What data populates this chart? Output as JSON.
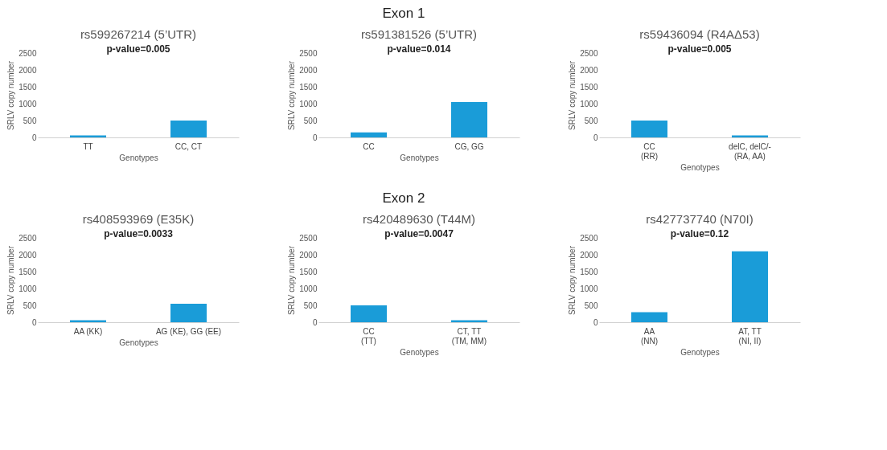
{
  "chart_data": [
    {
      "type": "bar",
      "title": "rs599267214 (5’UTR)",
      "xlabel": "Genotypes",
      "ylabel": "SRLV copy number",
      "categories": [
        "TT",
        "CC, CT"
      ],
      "values": [
        60,
        500
      ],
      "color": "#1a9cd8",
      "ylim": [
        0,
        2500
      ],
      "yticks": [
        0,
        500,
        1000,
        1500,
        2000,
        2500
      ],
      "grid": false,
      "annotations": [
        "Exon 1",
        "p-value=0.005"
      ]
    },
    {
      "type": "bar",
      "title": "rs591381526 (5’UTR)",
      "xlabel": "Genotypes",
      "ylabel": "SRLV copy number",
      "categories": [
        "CC",
        "CG, GG"
      ],
      "values": [
        150,
        1050
      ],
      "color": "#1a9cd8",
      "ylim": [
        0,
        2500
      ],
      "yticks": [
        0,
        500,
        1000,
        1500,
        2000,
        2500
      ],
      "grid": false,
      "annotations": [
        "p-value=0.014"
      ]
    },
    {
      "type": "bar",
      "title": "rs59436094 (R4AΔ53)",
      "xlabel": "Genotypes",
      "ylabel": "SRLV copy number",
      "categories": [
        "CC\n(RR)",
        "delC, delC/-\n(RA, AA)"
      ],
      "values": [
        500,
        60
      ],
      "color": "#1a9cd8",
      "ylim": [
        0,
        2500
      ],
      "yticks": [
        0,
        500,
        1000,
        1500,
        2000,
        2500
      ],
      "grid": false,
      "annotations": [
        "p-value=0.005"
      ]
    },
    {
      "type": "bar",
      "title": "rs408593969 (E35K)",
      "xlabel": "Genotypes",
      "ylabel": "SRLV copy number",
      "categories": [
        "AA (KK)",
        "AG (KE), GG (EE)"
      ],
      "values": [
        60,
        550
      ],
      "color": "#1a9cd8",
      "ylim": [
        0,
        2500
      ],
      "yticks": [
        0,
        500,
        1000,
        1500,
        2000,
        2500
      ],
      "grid": false,
      "annotations": [
        "Exon 2",
        "p-value=0.0033"
      ]
    },
    {
      "type": "bar",
      "title": "rs420489630 (T44M)",
      "xlabel": "Genotypes",
      "ylabel": "SRLV copy number",
      "categories": [
        "CC\n(TT)",
        "CT, TT\n(TM, MM)"
      ],
      "values": [
        500,
        60
      ],
      "color": "#1a9cd8",
      "ylim": [
        0,
        2500
      ],
      "yticks": [
        0,
        500,
        1000,
        1500,
        2000,
        2500
      ],
      "grid": false,
      "annotations": [
        "p-value=0.0047"
      ]
    },
    {
      "type": "bar",
      "title": "rs427737740 (N70I)",
      "xlabel": "Genotypes",
      "ylabel": "SRLV copy number",
      "categories": [
        "AA\n(NN)",
        "AT, TT\n(NI, II)"
      ],
      "values": [
        300,
        2100
      ],
      "color": "#1a9cd8",
      "ylim": [
        0,
        2500
      ],
      "yticks": [
        0,
        500,
        1000,
        1500,
        2000,
        2500
      ],
      "grid": false,
      "annotations": [
        "p-value=0.12"
      ]
    }
  ]
}
